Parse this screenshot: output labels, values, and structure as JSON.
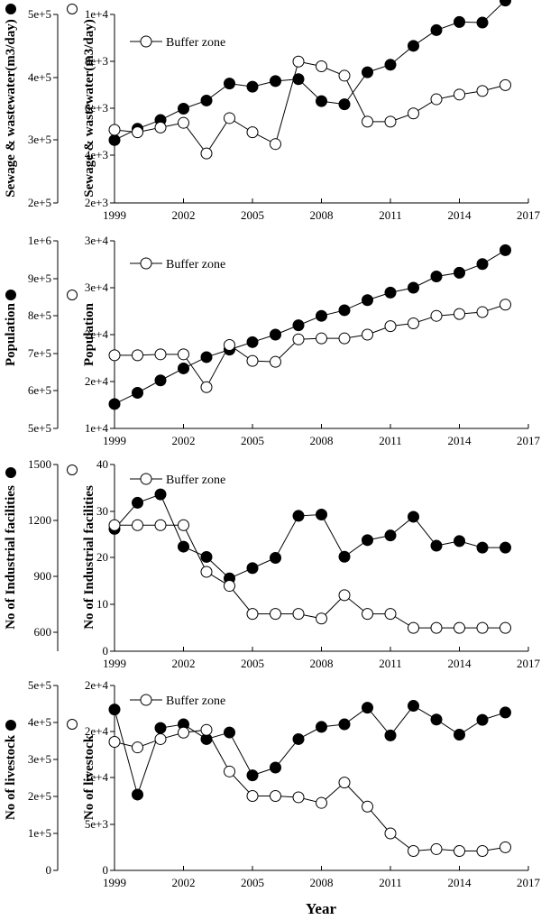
{
  "xlabel": "Year",
  "x_ticks": [
    1999,
    2002,
    2005,
    2008,
    2011,
    2014,
    2017
  ],
  "chart_data": [
    {
      "type": "line",
      "ylabel_left": "Sewage & wastewater(m3/day)",
      "ylabel_right": "Sewage & wastewater(m3/day)",
      "legend": "Buffer zone",
      "xlim": [
        1999,
        2017
      ],
      "left_axis": {
        "ticks": [
          "2e+5",
          "3e+5",
          "4e+5",
          "5e+5"
        ],
        "range": [
          200000,
          500000
        ]
      },
      "right_axis": {
        "ticks": [
          "2e+3",
          "4e+3",
          "6e+3",
          "8e+3",
          "1e+4"
        ],
        "range": [
          2000,
          10000
        ]
      },
      "x": [
        1999,
        2000,
        2001,
        2002,
        2003,
        2004,
        2005,
        2006,
        2007,
        2008,
        2009,
        2010,
        2011,
        2012,
        2013,
        2014,
        2015,
        2016
      ],
      "series": [
        {
          "marker": "filled",
          "axis": "left",
          "values": [
            300000,
            318000,
            332000,
            350000,
            363000,
            390000,
            385000,
            394000,
            397000,
            362000,
            357000,
            408000,
            420000,
            450000,
            475000,
            488000,
            487000,
            522000
          ]
        },
        {
          "marker": "open",
          "axis": "right",
          "values": [
            5100,
            5000,
            5200,
            5400,
            4100,
            5600,
            5000,
            4500,
            8000,
            7800,
            7400,
            5450,
            5450,
            5800,
            6400,
            6600,
            6750,
            7000
          ]
        }
      ]
    },
    {
      "type": "line",
      "ylabel_left": "Population",
      "ylabel_right": "Population",
      "legend": "Buffer zone",
      "xlim": [
        1999,
        2017
      ],
      "left_axis": {
        "ticks": [
          "5e+5",
          "6e+5",
          "7e+5",
          "8e+5",
          "9e+5",
          "1e+6"
        ],
        "range": [
          500000,
          1000000
        ]
      },
      "right_axis": {
        "ticks": [
          "1e+4",
          "2e+4",
          "2e+4",
          "3e+4",
          "3e+4"
        ],
        "range": [
          10000,
          30000
        ]
      },
      "x": [
        1999,
        2000,
        2001,
        2002,
        2003,
        2004,
        2005,
        2006,
        2007,
        2008,
        2009,
        2010,
        2011,
        2012,
        2013,
        2014,
        2015,
        2016
      ],
      "series": [
        {
          "marker": "filled",
          "axis": "left",
          "values": [
            565000,
            595000,
            628000,
            660000,
            690000,
            710000,
            730000,
            750000,
            775000,
            800000,
            815000,
            842000,
            862000,
            875000,
            905000,
            915000,
            938000,
            975000
          ]
        },
        {
          "marker": "open",
          "axis": "right",
          "values": [
            17800,
            17800,
            17900,
            17900,
            14400,
            18900,
            17200,
            17100,
            19500,
            19600,
            19600,
            20000,
            20900,
            21200,
            22000,
            22200,
            22400,
            23200
          ]
        }
      ]
    },
    {
      "type": "line",
      "ylabel_left": "No of Industrial facilities",
      "ylabel_right": "No of Industrial facilities",
      "legend": "Buffer zone",
      "xlim": [
        1999,
        2017
      ],
      "left_axis": {
        "ticks": [
          "600",
          "900",
          "1200",
          "1500"
        ],
        "range": [
          500,
          1500
        ]
      },
      "right_axis": {
        "ticks": [
          "0",
          "10",
          "20",
          "30",
          "40"
        ],
        "range": [
          0,
          40
        ]
      },
      "x": [
        1999,
        2000,
        2001,
        2002,
        2003,
        2004,
        2005,
        2006,
        2007,
        2008,
        2009,
        2010,
        2011,
        2012,
        2013,
        2014,
        2015,
        2016
      ],
      "series": [
        {
          "marker": "filled",
          "axis": "left",
          "values": [
            1155,
            1295,
            1340,
            1060,
            1005,
            890,
            945,
            1000,
            1225,
            1232,
            1006,
            1095,
            1120,
            1220,
            1065,
            1090,
            1055,
            1055
          ]
        },
        {
          "marker": "open",
          "axis": "right",
          "values": [
            27,
            27,
            27,
            27,
            17,
            14,
            8,
            8,
            8,
            7,
            12,
            8,
            8,
            5,
            5,
            5,
            5,
            5
          ]
        }
      ]
    },
    {
      "type": "line",
      "ylabel_left": "No of livestock",
      "ylabel_right": "No of livestock",
      "legend": "Buffer zone",
      "xlim": [
        1999,
        2017
      ],
      "left_axis": {
        "ticks": [
          "0",
          "1e+5",
          "2e+5",
          "3e+5",
          "4e+5",
          "5e+5"
        ],
        "range": [
          0,
          500000
        ]
      },
      "right_axis": {
        "ticks": [
          "0",
          "5e+3",
          "1e+4",
          "2e+4",
          "2e+4"
        ],
        "range": [
          0,
          20000
        ]
      },
      "x": [
        1999,
        2000,
        2001,
        2002,
        2003,
        2004,
        2005,
        2006,
        2007,
        2008,
        2009,
        2010,
        2011,
        2012,
        2013,
        2014,
        2015,
        2016
      ],
      "series": [
        {
          "marker": "filled",
          "axis": "left",
          "values": [
            435000,
            205000,
            385000,
            395000,
            355000,
            373000,
            257000,
            278000,
            355000,
            388000,
            395000,
            440000,
            365000,
            445000,
            408000,
            367000,
            407000,
            427000
          ]
        },
        {
          "marker": "open",
          "axis": "right",
          "values": [
            13900,
            13300,
            14200,
            14900,
            15200,
            10700,
            8050,
            8050,
            7900,
            7300,
            9500,
            6900,
            4000,
            2100,
            2300,
            2100,
            2100,
            2500
          ]
        }
      ]
    }
  ]
}
